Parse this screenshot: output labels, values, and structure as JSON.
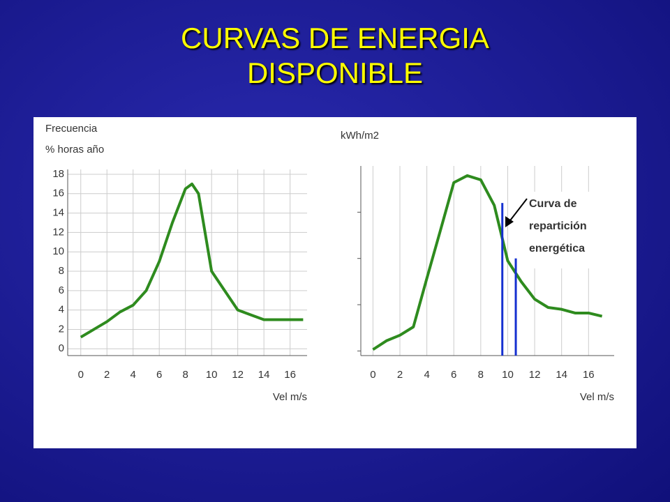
{
  "title": "CURVAS DE ENERGIA DISPONIBLE",
  "chart_data": [
    {
      "type": "line",
      "ylabel": [
        "Frecuencia",
        "% horas año"
      ],
      "xlabel": "Vel m/s",
      "x": [
        0,
        1,
        2,
        3,
        4,
        5,
        6,
        7,
        8,
        8.5,
        9,
        10,
        11,
        12,
        13,
        14,
        15,
        16,
        17
      ],
      "series": [
        {
          "color": "#2e8b1e",
          "values": [
            1.2,
            2,
            2.8,
            3.8,
            4.5,
            6,
            9,
            13,
            16.5,
            17,
            16,
            8,
            6,
            4,
            3.5,
            3,
            3,
            3,
            3
          ]
        }
      ],
      "xlim": [
        -1,
        17.3
      ],
      "ylim": [
        -0.7,
        18.5
      ],
      "xticks": [
        0,
        2,
        4,
        6,
        8,
        10,
        12,
        14,
        16
      ],
      "yticks": [
        0,
        2,
        4,
        6,
        8,
        10,
        12,
        14,
        16,
        18
      ],
      "ytick_labels": true,
      "grid": true
    },
    {
      "type": "line",
      "ylabel": [
        "kWh/m2"
      ],
      "xlabel": "Vel m/s",
      "x": [
        0,
        1,
        2,
        3,
        4,
        5,
        6,
        7,
        8,
        9,
        10,
        11,
        12,
        13,
        14,
        15,
        16,
        17
      ],
      "series": [
        {
          "color": "#2e8b1e",
          "values": [
            0.03,
            0.22,
            0.34,
            0.52,
            1.57,
            2.6,
            3.64,
            3.79,
            3.7,
            3.15,
            1.95,
            1.5,
            1.12,
            0.94,
            0.9,
            0.82,
            0.82,
            0.75
          ]
        }
      ],
      "xlim": [
        -0.9,
        17.9
      ],
      "ylim": [
        -0.1,
        4
      ],
      "xticks": [
        0,
        2,
        4,
        6,
        8,
        10,
        12,
        14,
        16
      ],
      "yticks": [
        0,
        1,
        2,
        3
      ],
      "ytick_labels": false,
      "grid": true,
      "vlines": [
        9.6,
        10.6
      ],
      "vline_color": "#1530d0",
      "annotation": [
        "Curva de",
        "repartición",
        "energética"
      ]
    }
  ]
}
